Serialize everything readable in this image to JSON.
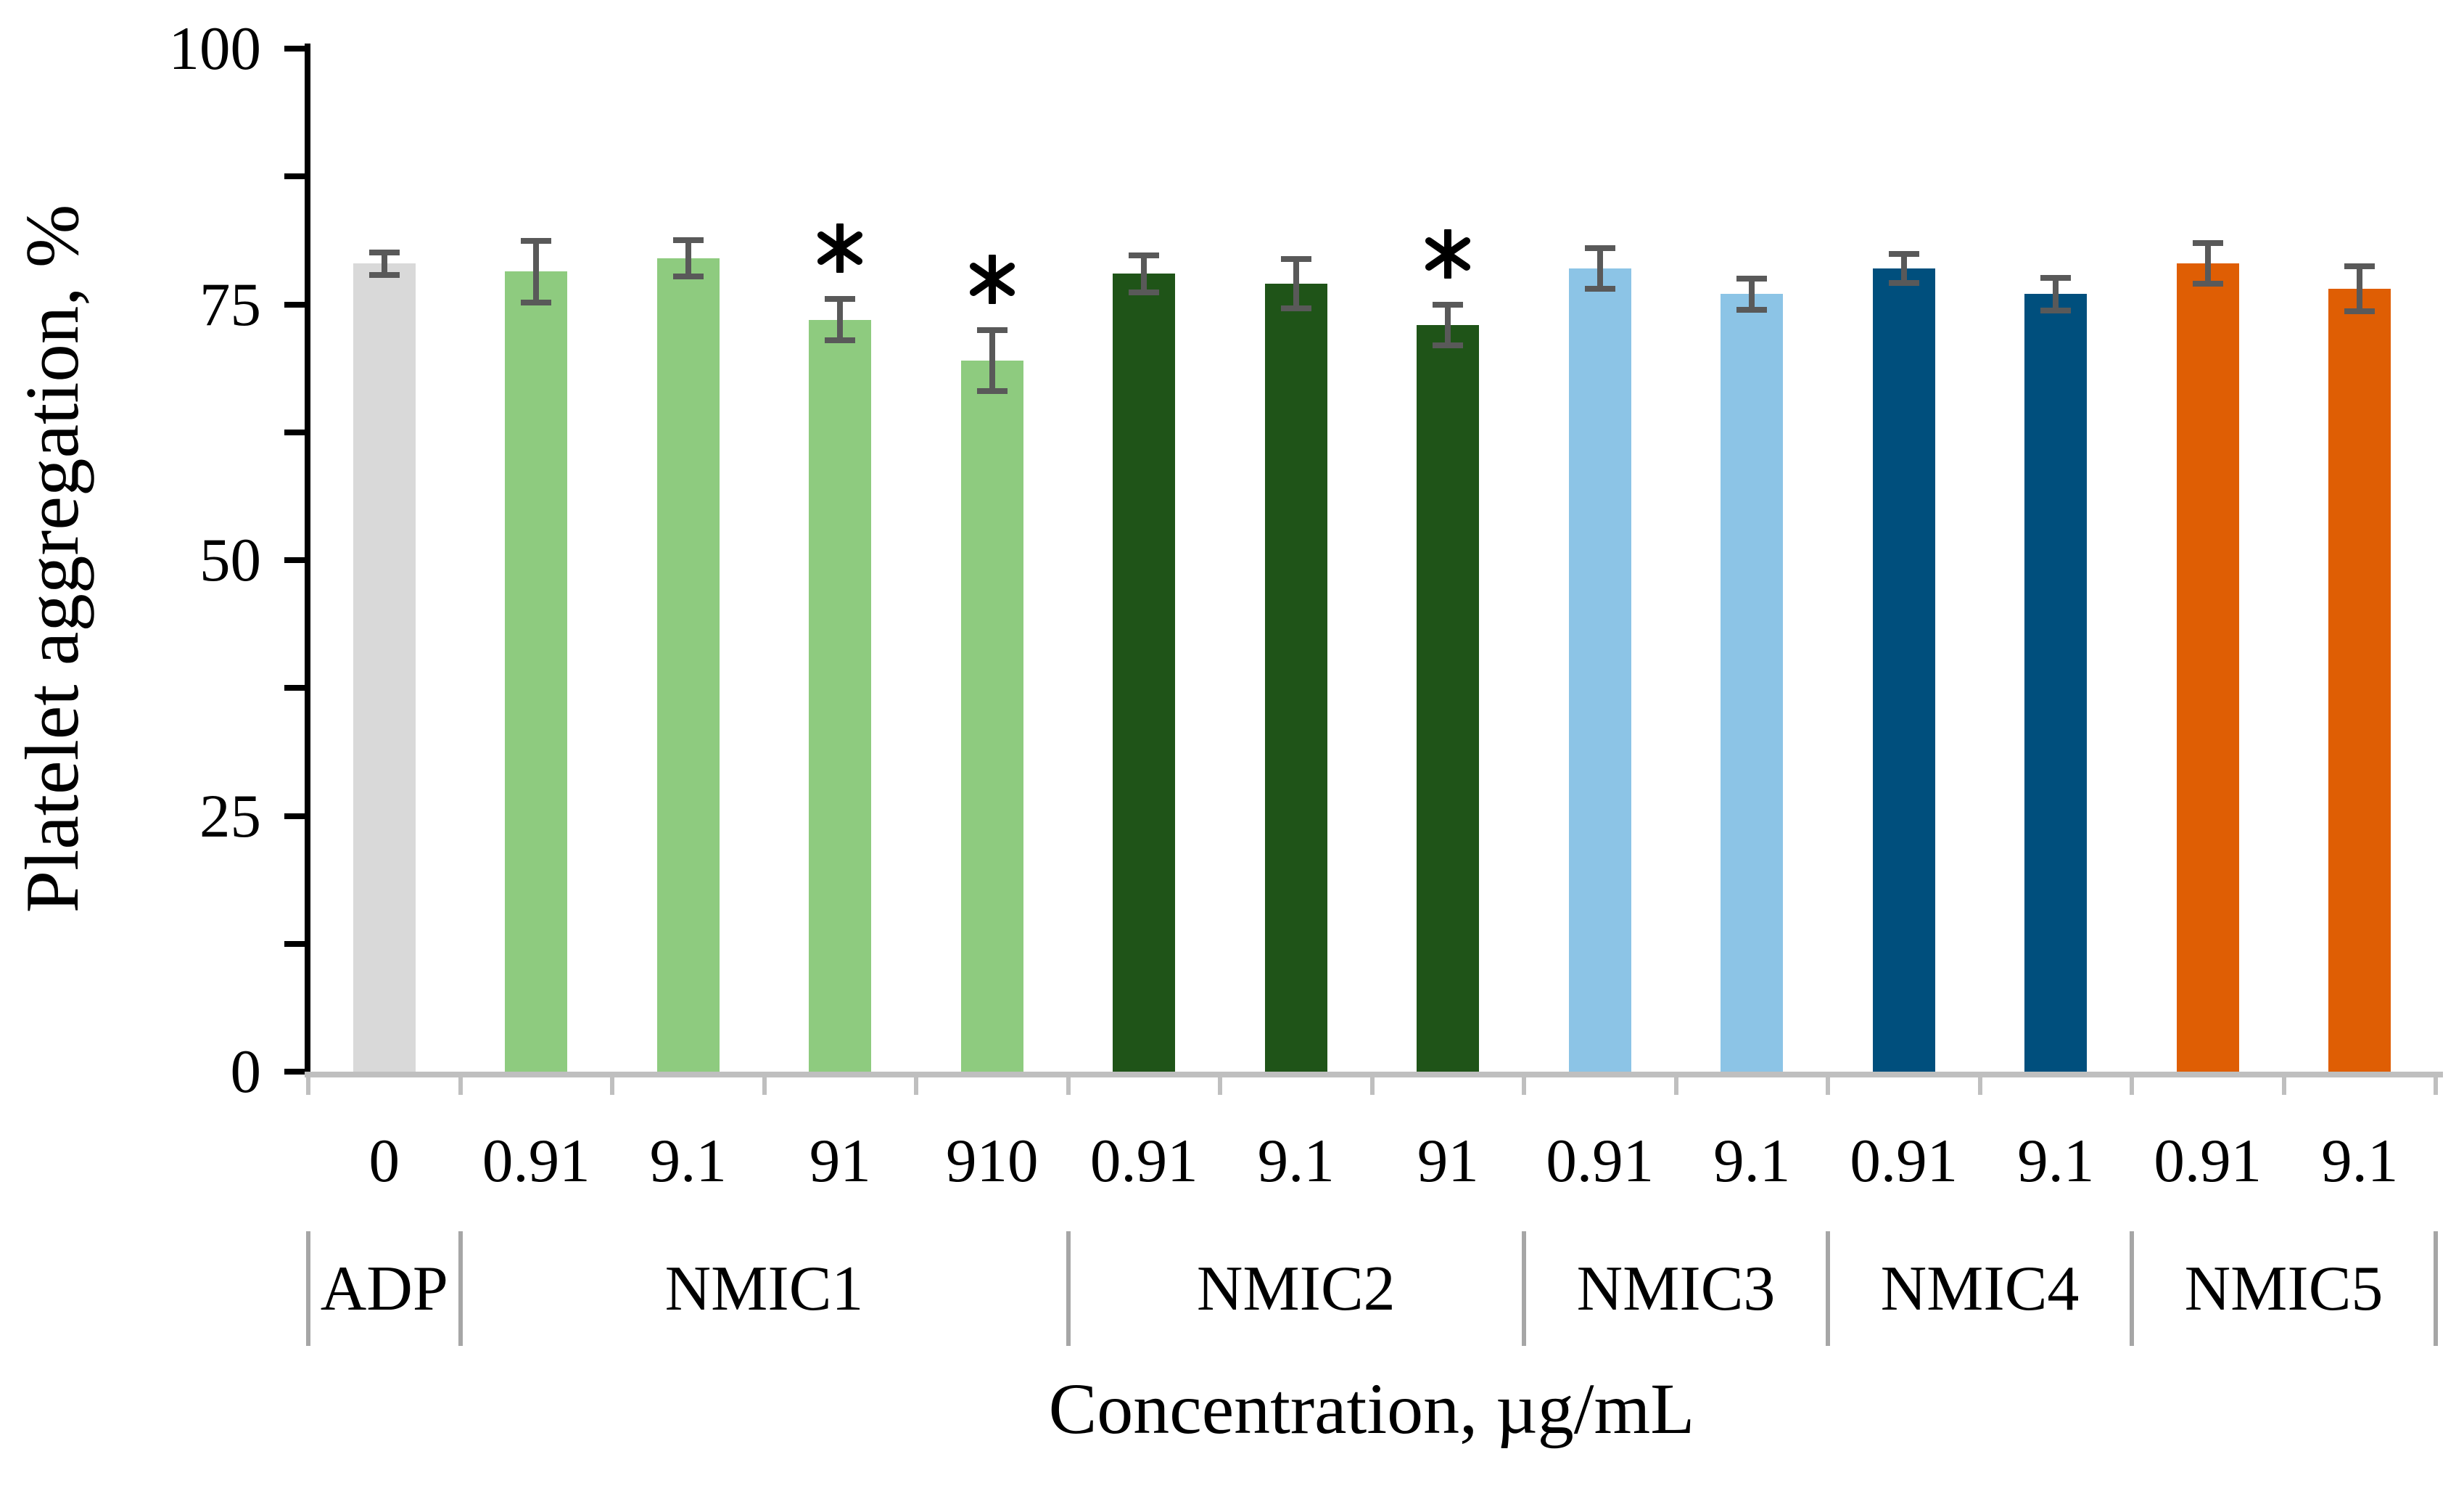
{
  "chart_data": {
    "type": "bar",
    "title": "",
    "ylabel": "Platelet aggregation, %",
    "xlabel": "Concentration, µg/mL",
    "ylim": [
      0,
      100
    ],
    "grid": false,
    "legend": "none",
    "y_axis": {
      "major_ticks": [
        {
          "value": 0,
          "label": "0"
        },
        {
          "value": 25,
          "label": "25"
        },
        {
          "value": 50,
          "label": "50"
        },
        {
          "value": 75,
          "label": "75"
        },
        {
          "value": 100,
          "label": "100"
        }
      ],
      "minor_tick_step": 12.5,
      "all_tick_values": [
        0,
        12.5,
        25,
        37.5,
        50,
        62.5,
        75,
        87.5,
        100
      ]
    },
    "significance_marker": "*",
    "colors": {
      "error_bar": "#595959",
      "axis": "#000000",
      "category_line": "#bfbfbf",
      "group_separator": "#a6a6a6",
      "text": "#000000"
    },
    "categories": [
      "0",
      "0.91",
      "9.1",
      "91",
      "910",
      "0.91",
      "9.1",
      "91",
      "0.91",
      "9.1",
      "0.91",
      "9.1",
      "0.91",
      "9.1"
    ],
    "groups": [
      {
        "name": "ADP",
        "color": "#d9d9d9",
        "bars": [
          {
            "x": "0",
            "value": 79,
            "error": 1.1,
            "significant": false
          }
        ]
      },
      {
        "name": "NMIC1",
        "color": "#8ecb7f",
        "bars": [
          {
            "x": "0.91",
            "value": 78.2,
            "error": 3.0,
            "significant": false
          },
          {
            "x": "9.1",
            "value": 79.5,
            "error": 1.8,
            "significant": false
          },
          {
            "x": "91",
            "value": 73.5,
            "error": 2.0,
            "significant": true
          },
          {
            "x": "910",
            "value": 69.5,
            "error": 3.0,
            "significant": true
          }
        ]
      },
      {
        "name": "NMIC2",
        "color": "#1f5418",
        "bars": [
          {
            "x": "0.91",
            "value": 78.0,
            "error": 1.8,
            "significant": false
          },
          {
            "x": "9.1",
            "value": 77.0,
            "error": 2.4,
            "significant": false
          },
          {
            "x": "91",
            "value": 73.0,
            "error": 2.0,
            "significant": true
          }
        ]
      },
      {
        "name": "NMIC3",
        "color": "#8cc4e6",
        "bars": [
          {
            "x": "0.91",
            "value": 78.5,
            "error": 2.0,
            "significant": false
          },
          {
            "x": "9.1",
            "value": 76.0,
            "error": 1.5,
            "significant": false
          }
        ]
      },
      {
        "name": "NMIC4",
        "color": "#004f7d",
        "bars": [
          {
            "x": "0.91",
            "value": 78.5,
            "error": 1.4,
            "significant": false
          },
          {
            "x": "9.1",
            "value": 76.0,
            "error": 1.6,
            "significant": false
          }
        ]
      },
      {
        "name": "NMIC5",
        "color": "#df5e04",
        "bars": [
          {
            "x": "0.91",
            "value": 79.0,
            "error": 2.0,
            "significant": false
          },
          {
            "x": "9.1",
            "value": 76.5,
            "error": 2.2,
            "significant": false
          }
        ]
      }
    ]
  }
}
